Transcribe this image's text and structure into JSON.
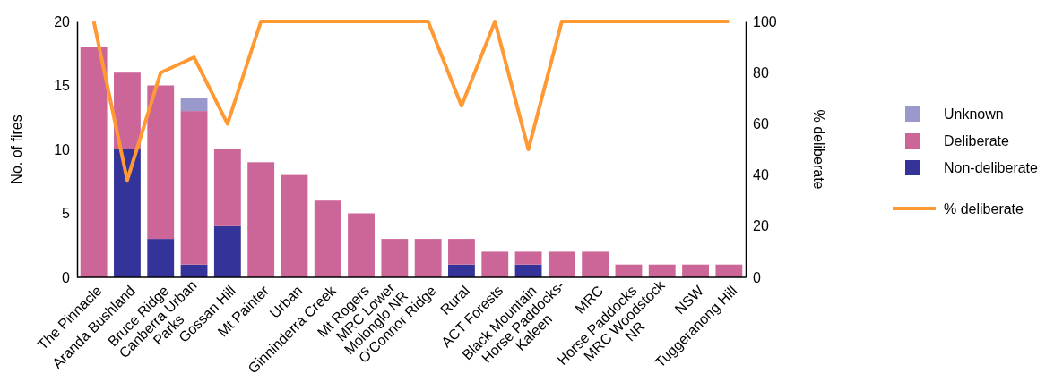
{
  "chart_data": {
    "type": "bar",
    "stacked": true,
    "xlabel": null,
    "ylabel": "No. of fires",
    "y2label": "% deliberate",
    "categories": [
      "The Pinnacle",
      "Aranda Bushland",
      "Bruce Ridge",
      "Canberra Urban\nParks",
      "Gossan Hill",
      "Mt Painter",
      "Urban",
      "Ginninderra Creek",
      "Mt Rogers",
      "MRC Lower\nMolonglo NR",
      "O'Connor Ridge",
      "Rural",
      "ACT Forests",
      "Black Mountain",
      "Horse Paddocks-\nKaleen",
      "MRC",
      "Horse Paddocks",
      "MRC Woodstock\nNR",
      "NSW",
      "Tuggeranong Hill"
    ],
    "series": [
      {
        "name": "Non-deliberate",
        "color": "#333399",
        "values": [
          0,
          10,
          3,
          1,
          4,
          0,
          0,
          0,
          0,
          0,
          0,
          1,
          0,
          1,
          0,
          0,
          0,
          0,
          0,
          0
        ]
      },
      {
        "name": "Deliberate",
        "color": "#cc6699",
        "values": [
          18,
          6,
          12,
          12,
          6,
          9,
          8,
          6,
          5,
          3,
          3,
          2,
          2,
          1,
          2,
          2,
          1,
          1,
          1,
          1
        ]
      },
      {
        "name": "Unknown",
        "color": "#9999cc",
        "values": [
          0,
          0,
          0,
          1,
          0,
          0,
          0,
          0,
          0,
          0,
          0,
          0,
          0,
          0,
          0,
          0,
          0,
          0,
          0,
          0
        ]
      },
      {
        "name": "% deliberate",
        "type": "line",
        "axis": "y2",
        "color": "#ff9933",
        "values": [
          100,
          38,
          80,
          86,
          60,
          100,
          100,
          100,
          100,
          100,
          100,
          67,
          100,
          50,
          100,
          100,
          100,
          100,
          100,
          100
        ]
      }
    ],
    "ylim": [
      0,
      20
    ],
    "yticks": [
      0,
      5,
      10,
      15,
      20
    ],
    "y2lim": [
      0,
      100
    ],
    "y2ticks": [
      0,
      20,
      40,
      60,
      80,
      100
    ],
    "grid": false,
    "legend": "right",
    "marker": "none"
  }
}
